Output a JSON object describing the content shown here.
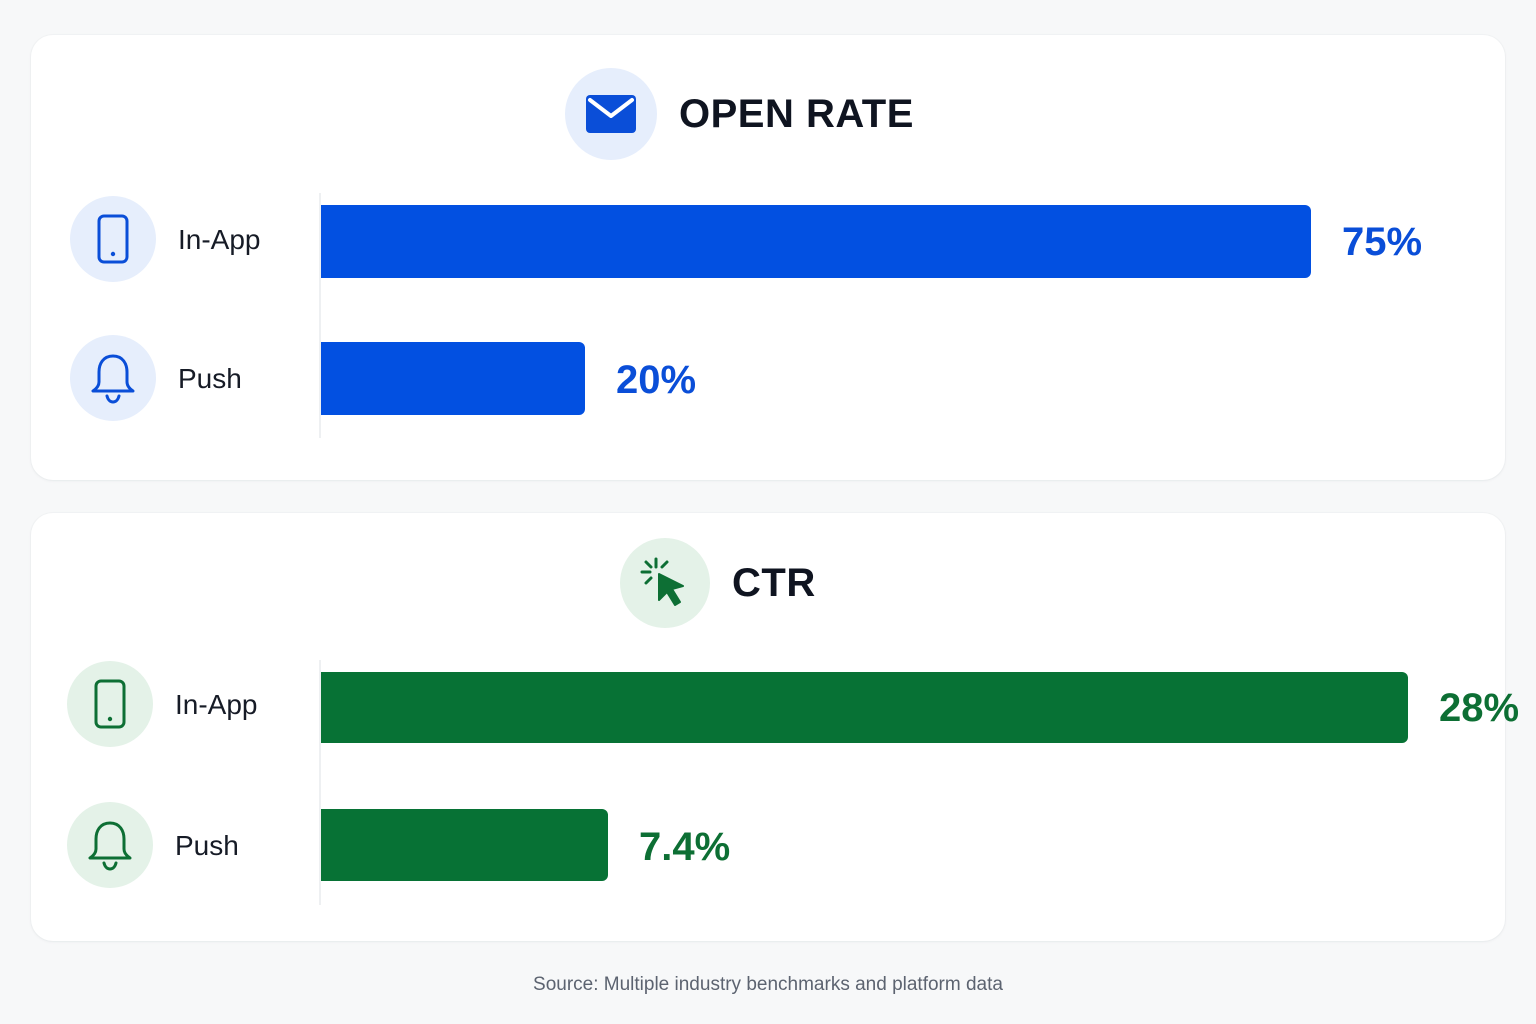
{
  "chart_data": [
    {
      "type": "bar",
      "orientation": "horizontal",
      "title": "OPEN RATE",
      "categories": [
        "In-App",
        "Push"
      ],
      "values": [
        75,
        20
      ],
      "value_labels": [
        "75%",
        "20%"
      ],
      "xlim": [
        0,
        100
      ],
      "grid": false,
      "color": "#0250e1",
      "header_icon": "envelope-icon",
      "row_icons": [
        "smartphone-icon",
        "bell-icon"
      ]
    },
    {
      "type": "bar",
      "orientation": "horizontal",
      "title": "CTR",
      "categories": [
        "In-App",
        "Push"
      ],
      "values": [
        28,
        7.4
      ],
      "value_labels": [
        "28%",
        "7.4%"
      ],
      "xlim": [
        0,
        34
      ],
      "grid": false,
      "color": "#077235",
      "header_icon": "cursor-click-icon",
      "row_icons": [
        "smartphone-icon",
        "bell-icon"
      ]
    }
  ],
  "footer": {
    "source": "Source: Multiple industry benchmarks and platform data"
  }
}
